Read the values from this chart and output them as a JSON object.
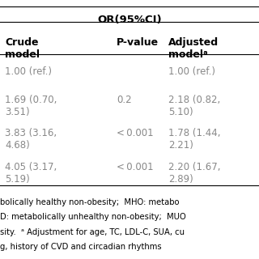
{
  "title": "OR(95%CI)",
  "col_headers": [
    "Crude\nmodel",
    "P-value",
    "Adjusted\nmodelᵃ"
  ],
  "rows": [
    [
      "1.00 (ref.)",
      "",
      "1.00 (ref.)"
    ],
    [
      "1.69 (0.70,\n3.51)",
      "0.2",
      "2.18 (0.82,\n5.10)"
    ],
    [
      "3.83 (3.16,\n4.68)",
      "< 0.001",
      "1.78 (1.44,\n2.21)"
    ],
    [
      "4.05 (3.17,\n5.19)",
      "< 0.001",
      "2.20 (1.67,\n2.89)"
    ]
  ],
  "footer_lines": [
    "bolically healthy non-obesity;  MHO: metabo",
    "D: metabolically unhealthy non-obesity;  MUO",
    "sity.  ᵃ Adjustment for age, TC, LDL-C, SUA, cu",
    "g, history of CVD and circadian rhythms"
  ],
  "bg_color": "#ffffff",
  "text_color": "#000000",
  "gray_color": "#888888",
  "header_color": "#000000",
  "line_color": "#000000",
  "footer_color": "#000000"
}
